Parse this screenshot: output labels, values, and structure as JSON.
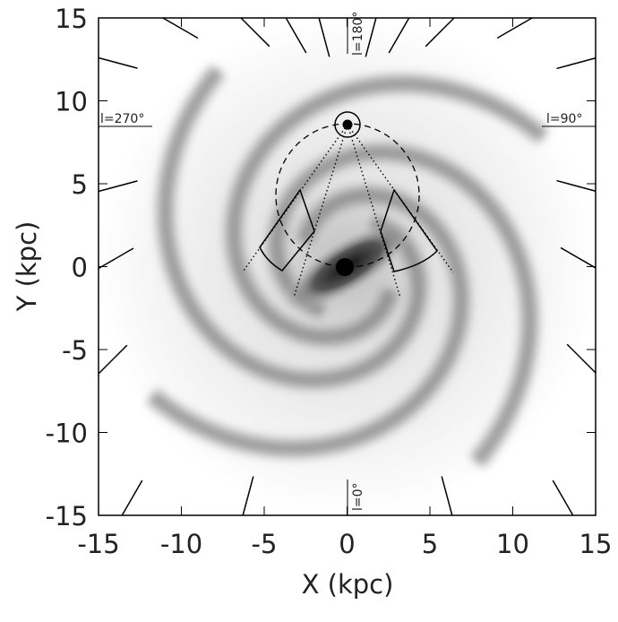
{
  "chart_data": {
    "type": "map",
    "x_label": "X (kpc)",
    "y_label": "Y (kpc)",
    "xlim": [
      -15,
      15
    ],
    "ylim": [
      -15,
      15
    ],
    "xticks": [
      -15,
      -10,
      -5,
      0,
      5,
      10,
      15
    ],
    "yticks": [
      -15,
      -10,
      -5,
      0,
      5,
      10,
      15
    ],
    "annotations": [
      "l=270°",
      "l=90°",
      "l=180°",
      "l=0°"
    ]
  }
}
